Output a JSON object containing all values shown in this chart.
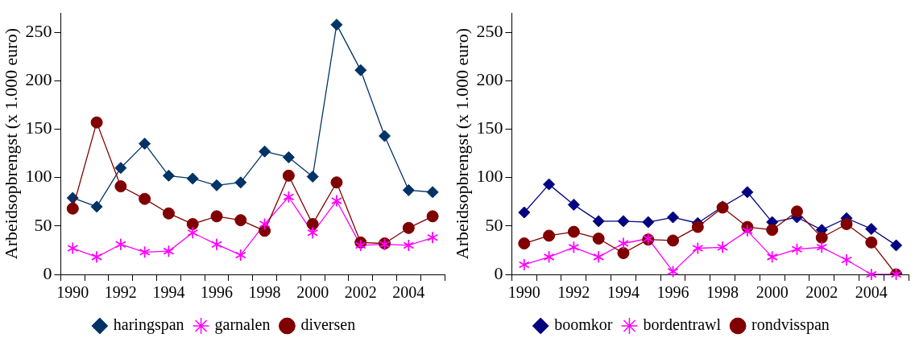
{
  "chart_data": [
    {
      "type": "line",
      "ylabel": "Arbeidsopbrengst (x 1.000 euro)",
      "categories": [
        "1990",
        null,
        "1992",
        null,
        "1994",
        null,
        "1996",
        null,
        "1998",
        null,
        "2000",
        null,
        "2002",
        null,
        "2004",
        null
      ],
      "ylim": [
        0,
        270
      ],
      "yticks": [
        0,
        50,
        100,
        150,
        200,
        250
      ],
      "grid": false,
      "legend": "bottom",
      "line_style": "solid",
      "series": [
        {
          "name": "haringspan",
          "color": "#003366",
          "marker": "diamond",
          "values": [
            79,
            70,
            110,
            135,
            102,
            99,
            92,
            95,
            127,
            121,
            101,
            258,
            211,
            143,
            87,
            85
          ]
        },
        {
          "name": "garnalen",
          "color": "#ff00ff",
          "marker": "star",
          "values": [
            27,
            18,
            31,
            23,
            24,
            43,
            31,
            20,
            52,
            80,
            43,
            76,
            30,
            31,
            30,
            38
          ]
        },
        {
          "name": "diversen",
          "color": "#800000",
          "marker": "circle",
          "values": [
            68,
            157,
            91,
            78,
            63,
            52,
            60,
            56,
            45,
            102,
            52,
            95,
            33,
            32,
            48,
            60
          ]
        }
      ]
    },
    {
      "type": "line",
      "ylabel": "Arbeidsopbrengst (x 1.000 euro)",
      "categories": [
        "1990",
        null,
        "1992",
        null,
        "1994",
        null,
        "1996",
        null,
        "1998",
        null,
        "2000",
        null,
        "2002",
        null,
        "2004",
        null
      ],
      "ylim": [
        0,
        270
      ],
      "yticks": [
        0,
        50,
        100,
        150,
        200,
        250
      ],
      "grid": false,
      "legend": "bottom",
      "line_style": "solid",
      "series": [
        {
          "name": "boomkor",
          "color": "#000080",
          "marker": "diamond",
          "values": [
            64,
            93,
            72,
            55,
            55,
            54,
            59,
            53,
            70,
            85,
            54,
            59,
            46,
            58,
            47,
            30
          ]
        },
        {
          "name": "bordentrawl",
          "color": "#ff00ff",
          "marker": "star",
          "values": [
            10,
            18,
            28,
            18,
            32,
            37,
            3,
            27,
            28,
            45,
            18,
            26,
            28,
            15,
            0,
            0
          ]
        },
        {
          "name": "rondvisspan",
          "color": "#800000",
          "marker": "circle",
          "values": [
            32,
            40,
            44,
            37,
            22,
            36,
            35,
            49,
            69,
            49,
            46,
            65,
            38,
            52,
            33,
            0
          ]
        }
      ]
    }
  ]
}
